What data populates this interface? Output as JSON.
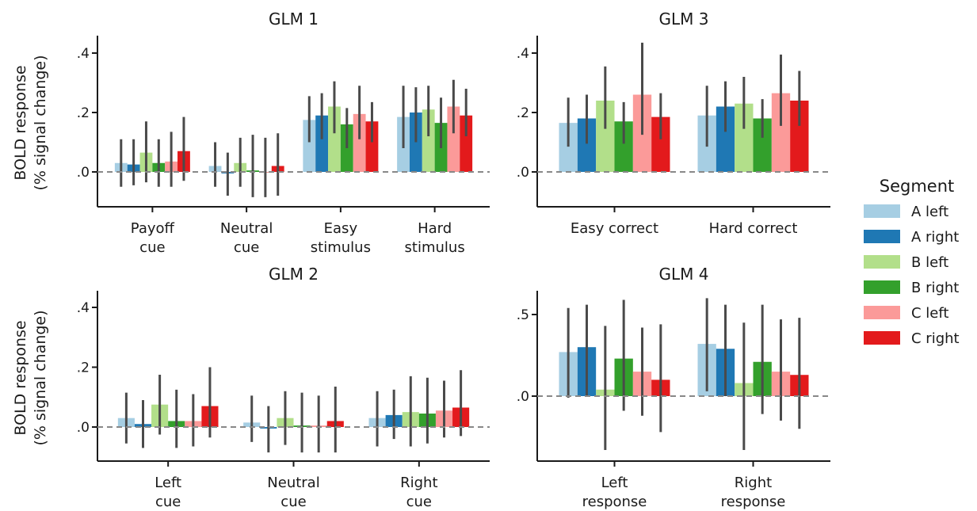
{
  "legend": {
    "title": "Segment",
    "entries": [
      {
        "label": "A left",
        "color": "#a6cee3"
      },
      {
        "label": "A right",
        "color": "#1f78b4"
      },
      {
        "label": "B left",
        "color": "#b2df8a"
      },
      {
        "label": "B right",
        "color": "#33a02c"
      },
      {
        "label": "C left",
        "color": "#fb9a99"
      },
      {
        "label": "C right",
        "color": "#e31a1c"
      }
    ]
  },
  "ylabel_line1": "BOLD response",
  "ylabel_line2": "(% signal change)",
  "chart_data": [
    {
      "type": "bar",
      "title": "GLM 1",
      "ylim": [
        -0.11,
        0.46
      ],
      "yticks": [
        ".0",
        ".2",
        ".4"
      ],
      "ytick_values": [
        0,
        0.2,
        0.4
      ],
      "categories": [
        [
          "Payoff",
          "cue"
        ],
        [
          "Neutral",
          "cue"
        ],
        [
          "Easy",
          "stimulus"
        ],
        [
          "Hard",
          "stimulus"
        ]
      ],
      "series": [
        {
          "name": "A left",
          "values": [
            0.03,
            0.02,
            0.175,
            0.185
          ],
          "err_low": [
            -0.05,
            -0.05,
            0.1,
            0.08
          ],
          "err_high": [
            0.11,
            0.1,
            0.255,
            0.29
          ]
        },
        {
          "name": "A right",
          "values": [
            0.025,
            -0.005,
            0.19,
            0.2
          ],
          "err_low": [
            -0.045,
            -0.08,
            0.11,
            0.1
          ],
          "err_high": [
            0.11,
            0.065,
            0.265,
            0.285
          ]
        },
        {
          "name": "B left",
          "values": [
            0.065,
            0.03,
            0.22,
            0.21
          ],
          "err_low": [
            -0.035,
            -0.05,
            0.13,
            0.12
          ],
          "err_high": [
            0.17,
            0.115,
            0.305,
            0.29
          ]
        },
        {
          "name": "B right",
          "values": [
            0.03,
            0.005,
            0.16,
            0.165
          ],
          "err_low": [
            -0.05,
            -0.085,
            0.08,
            0.08
          ],
          "err_high": [
            0.11,
            0.125,
            0.215,
            0.25
          ]
        },
        {
          "name": "C left",
          "values": [
            0.035,
            0.0,
            0.195,
            0.22
          ],
          "err_low": [
            -0.05,
            -0.085,
            0.11,
            0.13
          ],
          "err_high": [
            0.135,
            0.115,
            0.29,
            0.31
          ]
        },
        {
          "name": "C right",
          "values": [
            0.07,
            0.02,
            0.17,
            0.19
          ],
          "err_low": [
            -0.03,
            -0.08,
            0.1,
            0.12
          ],
          "err_high": [
            0.185,
            0.13,
            0.235,
            0.28
          ]
        }
      ]
    },
    {
      "type": "bar",
      "title": "GLM 3",
      "ylim": [
        -0.11,
        0.46
      ],
      "yticks": [
        ".0",
        ".2",
        ".4"
      ],
      "ytick_values": [
        0,
        0.2,
        0.4
      ],
      "categories": [
        [
          "Easy correct"
        ],
        [
          "Hard correct"
        ]
      ],
      "series": [
        {
          "name": "A left",
          "values": [
            0.165,
            0.19
          ],
          "err_low": [
            0.085,
            0.085
          ],
          "err_high": [
            0.25,
            0.29
          ]
        },
        {
          "name": "A right",
          "values": [
            0.18,
            0.22
          ],
          "err_low": [
            0.095,
            0.135
          ],
          "err_high": [
            0.26,
            0.305
          ]
        },
        {
          "name": "B left",
          "values": [
            0.24,
            0.23
          ],
          "err_low": [
            0.145,
            0.145
          ],
          "err_high": [
            0.355,
            0.32
          ]
        },
        {
          "name": "B right",
          "values": [
            0.17,
            0.18
          ],
          "err_low": [
            0.095,
            0.115
          ],
          "err_high": [
            0.235,
            0.245
          ]
        },
        {
          "name": "C left",
          "values": [
            0.26,
            0.265
          ],
          "err_low": [
            0.125,
            0.155
          ],
          "err_high": [
            0.435,
            0.395
          ]
        },
        {
          "name": "C right",
          "values": [
            0.185,
            0.24
          ],
          "err_low": [
            0.11,
            0.155
          ],
          "err_high": [
            0.265,
            0.34
          ]
        }
      ]
    },
    {
      "type": "bar",
      "title": "GLM 2",
      "ylim": [
        -0.11,
        0.46
      ],
      "yticks": [
        ".0",
        ".2",
        ".4"
      ],
      "ytick_values": [
        0,
        0.2,
        0.4
      ],
      "categories": [
        [
          "Left",
          "cue"
        ],
        [
          "Neutral",
          "cue"
        ],
        [
          "Right",
          "cue"
        ]
      ],
      "series": [
        {
          "name": "A left",
          "values": [
            0.03,
            0.015,
            0.03
          ],
          "err_low": [
            -0.055,
            -0.05,
            -0.065
          ],
          "err_high": [
            0.115,
            0.105,
            0.12
          ]
        },
        {
          "name": "A right",
          "values": [
            0.01,
            -0.005,
            0.04
          ],
          "err_low": [
            -0.07,
            -0.085,
            -0.04
          ],
          "err_high": [
            0.09,
            0.07,
            0.125
          ]
        },
        {
          "name": "B left",
          "values": [
            0.075,
            0.03,
            0.05
          ],
          "err_low": [
            -0.025,
            -0.06,
            -0.065
          ],
          "err_high": [
            0.175,
            0.12,
            0.17
          ]
        },
        {
          "name": "B right",
          "values": [
            0.02,
            0.005,
            0.045
          ],
          "err_low": [
            -0.07,
            -0.085,
            -0.055
          ],
          "err_high": [
            0.125,
            0.115,
            0.165
          ]
        },
        {
          "name": "C left",
          "values": [
            0.02,
            0.005,
            0.055
          ],
          "err_low": [
            -0.065,
            -0.085,
            -0.035
          ],
          "err_high": [
            0.11,
            0.105,
            0.155
          ]
        },
        {
          "name": "C right",
          "values": [
            0.07,
            0.02,
            0.065
          ],
          "err_low": [
            -0.035,
            -0.085,
            -0.03
          ],
          "err_high": [
            0.2,
            0.135,
            0.19
          ]
        }
      ]
    },
    {
      "type": "bar",
      "title": "GLM 4",
      "ylim": [
        -0.38,
        0.65
      ],
      "yticks": [
        ".0",
        ".5"
      ],
      "ytick_values": [
        0,
        0.5
      ],
      "categories": [
        [
          "Left",
          "response"
        ],
        [
          "Right",
          "response"
        ]
      ],
      "series": [
        {
          "name": "A left",
          "values": [
            0.27,
            0.32
          ],
          "err_low": [
            -0.01,
            0.03
          ],
          "err_high": [
            0.54,
            0.6
          ]
        },
        {
          "name": "A right",
          "values": [
            0.3,
            0.29
          ],
          "err_low": [
            0.0,
            0.0
          ],
          "err_high": [
            0.56,
            0.56
          ]
        },
        {
          "name": "B left",
          "values": [
            0.04,
            0.08
          ],
          "err_low": [
            -0.33,
            -0.33
          ],
          "err_high": [
            0.43,
            0.45
          ]
        },
        {
          "name": "B right",
          "values": [
            0.23,
            0.21
          ],
          "err_low": [
            -0.09,
            -0.11
          ],
          "err_high": [
            0.59,
            0.56
          ]
        },
        {
          "name": "C left",
          "values": [
            0.15,
            0.15
          ],
          "err_low": [
            -0.12,
            -0.15
          ],
          "err_high": [
            0.42,
            0.47
          ]
        },
        {
          "name": "C right",
          "values": [
            0.1,
            0.13
          ],
          "err_low": [
            -0.22,
            -0.2
          ],
          "err_high": [
            0.44,
            0.48
          ]
        }
      ]
    }
  ]
}
